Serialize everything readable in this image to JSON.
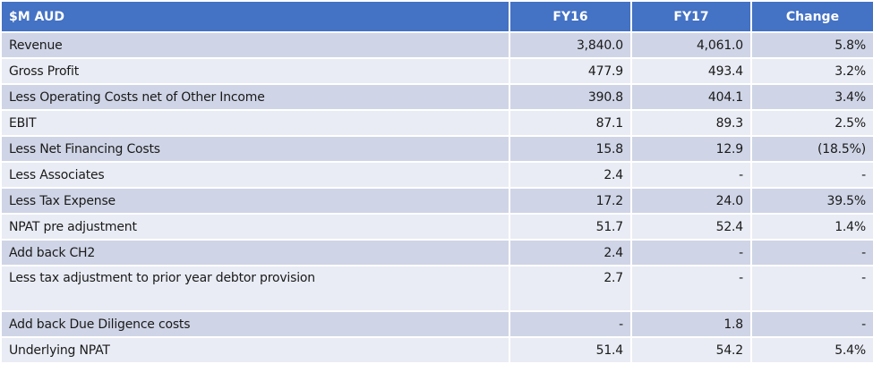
{
  "table": {
    "headers": {
      "label": "$M AUD",
      "fy16": "FY16",
      "fy17": "FY17",
      "change": "Change"
    },
    "rows": [
      {
        "label": "Revenue",
        "fy16": "3,840.0",
        "fy17": "4,061.0",
        "change": "5.8%"
      },
      {
        "label": "Gross Profit",
        "fy16": "477.9",
        "fy17": "493.4",
        "change": "3.2%"
      },
      {
        "label": "Less Operating Costs net of Other Income",
        "fy16": "390.8",
        "fy17": "404.1",
        "change": "3.4%"
      },
      {
        "label": "EBIT",
        "fy16": "87.1",
        "fy17": "89.3",
        "change": "2.5%"
      },
      {
        "label": "Less Net Financing Costs",
        "fy16": "15.8",
        "fy17": "12.9",
        "change": "(18.5%)"
      },
      {
        "label": "Less Associates",
        "fy16": "2.4",
        "fy17": "-",
        "change": "-"
      },
      {
        "label": "Less Tax Expense",
        "fy16": "17.2",
        "fy17": "24.0",
        "change": "39.5%"
      },
      {
        "label": "NPAT pre adjustment",
        "fy16": "51.7",
        "fy17": "52.4",
        "change": "1.4%"
      },
      {
        "label": "Add back CH2",
        "fy16": "2.4",
        "fy17": "-",
        "change": "-"
      },
      {
        "label": "Less tax adjustment to prior year debtor provision",
        "fy16": "2.7",
        "fy17": "-",
        "change": "-"
      },
      {
        "label": "Add back Due Diligence costs",
        "fy16": "-",
        "fy17": "1.8",
        "change": "-"
      },
      {
        "label": "Underlying NPAT",
        "fy16": "51.4",
        "fy17": "54.2",
        "change": "5.4%"
      }
    ]
  },
  "colors": {
    "header_bg": "#4472c4",
    "row_odd_bg": "#cfd5e6",
    "row_even_bg": "#e9ecf4"
  }
}
